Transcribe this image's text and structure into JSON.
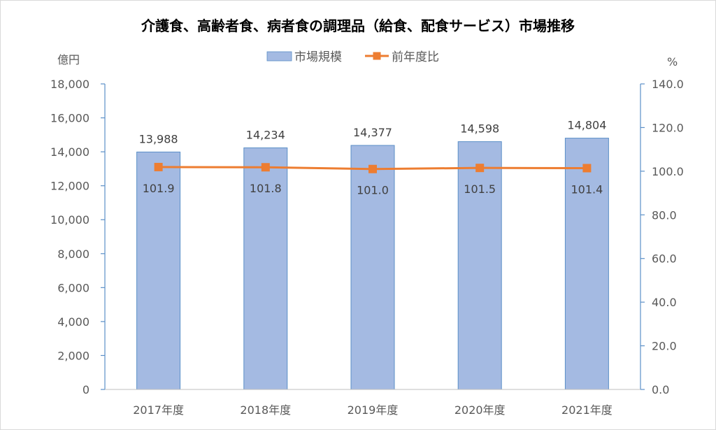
{
  "chart_data": {
    "type": "bar",
    "title": "介護食、高齢者食、病者食の調理品（給食、配食サービス）市場推移",
    "categories": [
      "2017年度",
      "2018年度",
      "2019年度",
      "2020年度",
      "2021年度"
    ],
    "series": [
      {
        "name": "市場規模",
        "type": "bar",
        "axis": "left",
        "color": "#a4bae2",
        "values": [
          13988,
          14234,
          14377,
          14598,
          14804
        ],
        "labels": [
          "13,988",
          "14,234",
          "14,377",
          "14,598",
          "14,804"
        ]
      },
      {
        "name": "前年度比",
        "type": "line",
        "axis": "right",
        "color": "#ed7d31",
        "marker": "square",
        "values": [
          101.9,
          101.8,
          101.0,
          101.5,
          101.4
        ],
        "labels": [
          "101.9",
          "101.8",
          "101.0",
          "101.5",
          "101.4"
        ]
      }
    ],
    "y_left": {
      "unit": "億円",
      "ylim": [
        0,
        18000
      ],
      "ticks": [
        "0",
        "2,000",
        "4,000",
        "6,000",
        "8,000",
        "10,000",
        "12,000",
        "14,000",
        "16,000",
        "18,000"
      ],
      "tick_values": [
        0,
        2000,
        4000,
        6000,
        8000,
        10000,
        12000,
        14000,
        16000,
        18000
      ]
    },
    "y_right": {
      "unit": "%",
      "ylim": [
        0,
        140
      ],
      "ticks": [
        "0.0",
        "20.0",
        "40.0",
        "60.0",
        "80.0",
        "100.0",
        "120.0",
        "140.0"
      ],
      "tick_values": [
        0,
        20,
        40,
        60,
        80,
        100,
        120,
        140
      ]
    },
    "grid": false,
    "legend": "top-center",
    "axis_color": "#5b8fc7"
  }
}
